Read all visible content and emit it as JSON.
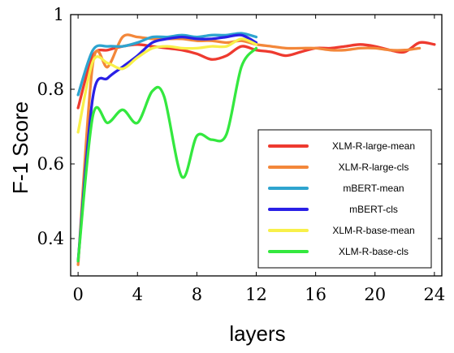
{
  "chart_data": {
    "type": "line",
    "xlabel": "layers",
    "ylabel": "F-1 Score",
    "xlim": [
      -0.5,
      24.5
    ],
    "ylim": [
      0.3,
      1.0
    ],
    "xticks": [
      0,
      4,
      8,
      12,
      16,
      20,
      24
    ],
    "yticks": [
      0.4,
      0.6,
      0.8,
      1.0
    ],
    "xtick_labels": [
      "0",
      "4",
      "8",
      "12",
      "16",
      "20",
      "24"
    ],
    "ytick_labels": [
      "0.4",
      "0.6",
      "0.8",
      "1"
    ],
    "grid": false,
    "legend_position": "lower-right",
    "series": [
      {
        "name": "XLM-R-large-mean",
        "color": "#ee3a2f",
        "x": [
          0,
          1,
          2,
          3,
          4,
          5,
          6,
          7,
          8,
          9,
          10,
          11,
          12,
          13,
          14,
          15,
          16,
          17,
          18,
          19,
          20,
          21,
          22,
          23,
          24
        ],
        "y": [
          0.75,
          0.89,
          0.905,
          0.915,
          0.92,
          0.915,
          0.91,
          0.905,
          0.895,
          0.88,
          0.89,
          0.915,
          0.905,
          0.9,
          0.89,
          0.9,
          0.91,
          0.91,
          0.915,
          0.92,
          0.915,
          0.905,
          0.9,
          0.925,
          0.92
        ]
      },
      {
        "name": "XLM-R-large-cls",
        "color": "#f3873a",
        "x": [
          0,
          1,
          2,
          3,
          4,
          5,
          6,
          7,
          8,
          9,
          10,
          11,
          12,
          13,
          14,
          15,
          16,
          17,
          18,
          19,
          20,
          21,
          22,
          23
        ],
        "y": [
          0.33,
          0.87,
          0.86,
          0.94,
          0.94,
          0.935,
          0.935,
          0.935,
          0.93,
          0.93,
          0.925,
          0.93,
          0.92,
          0.915,
          0.91,
          0.91,
          0.91,
          0.905,
          0.905,
          0.91,
          0.91,
          0.905,
          0.905,
          0.91
        ]
      },
      {
        "name": "mBERT-mean",
        "color": "#2ea4cf",
        "x": [
          0,
          1,
          2,
          3,
          4,
          5,
          6,
          7,
          8,
          9,
          10,
          11,
          12
        ],
        "y": [
          0.785,
          0.905,
          0.915,
          0.915,
          0.925,
          0.94,
          0.94,
          0.945,
          0.94,
          0.945,
          0.945,
          0.95,
          0.94
        ]
      },
      {
        "name": "mBERT-cls",
        "color": "#2a20e6",
        "x": [
          0,
          1,
          2,
          3,
          4,
          5,
          6,
          7,
          8,
          9,
          10,
          11,
          12
        ],
        "y": [
          0.34,
          0.78,
          0.83,
          0.86,
          0.89,
          0.925,
          0.935,
          0.94,
          0.935,
          0.935,
          0.94,
          0.945,
          0.925
        ]
      },
      {
        "name": "XLM-R-base-mean",
        "color": "#f8f04a",
        "x": [
          0,
          1,
          2,
          3,
          4,
          5,
          6,
          7,
          8,
          9,
          10,
          11,
          12
        ],
        "y": [
          0.685,
          0.875,
          0.87,
          0.855,
          0.885,
          0.91,
          0.915,
          0.91,
          0.91,
          0.915,
          0.915,
          0.935,
          0.92
        ]
      },
      {
        "name": "XLM-R-base-cls",
        "color": "#34e83f",
        "x": [
          0,
          1,
          2,
          3,
          4,
          5,
          5.8,
          7,
          8,
          9,
          10,
          11,
          12
        ],
        "y": [
          0.34,
          0.73,
          0.71,
          0.745,
          0.71,
          0.795,
          0.78,
          0.565,
          0.675,
          0.665,
          0.68,
          0.86,
          0.91
        ]
      }
    ]
  }
}
